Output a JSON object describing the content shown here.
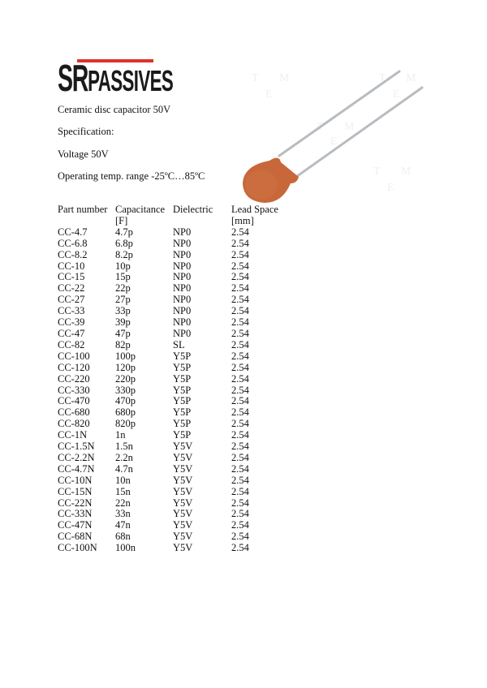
{
  "logo": {
    "text_sr": "SR",
    "text_rest": "PASSIVES",
    "accent": "#e0312c"
  },
  "title": "Ceramic disc capacitor 50V",
  "spec_label": "Specification:",
  "voltage": "Voltage 50V",
  "temp_range": "Operating temp. range -25ºC…85ºC",
  "image": {
    "description_icon": "ceramic-disc-capacitor-photo",
    "body_color": "#c8683a",
    "watermark": "TME"
  },
  "table": {
    "headers": [
      {
        "line1": "Part number",
        "line2": ""
      },
      {
        "line1": "Capacitance",
        "line2": "[F]"
      },
      {
        "line1": "Dielectric",
        "line2": ""
      },
      {
        "line1": "Lead Space",
        "line2": "[mm]"
      }
    ],
    "rows": [
      [
        "CC-4.7",
        "4.7p",
        "NP0",
        "2.54"
      ],
      [
        "CC-6.8",
        "6.8p",
        "NP0",
        "2.54"
      ],
      [
        "CC-8.2",
        "8.2p",
        "NP0",
        "2.54"
      ],
      [
        "CC-10",
        "10p",
        "NP0",
        "2.54"
      ],
      [
        "CC-15",
        "15p",
        "NP0",
        "2.54"
      ],
      [
        "CC-22",
        "22p",
        "NP0",
        "2.54"
      ],
      [
        "CC-27",
        "27p",
        "NP0",
        "2.54"
      ],
      [
        "CC-33",
        "33p",
        "NP0",
        "2.54"
      ],
      [
        "CC-39",
        "39p",
        "NP0",
        "2.54"
      ],
      [
        "CC-47",
        "47p",
        "NP0",
        "2.54"
      ],
      [
        "CC-82",
        "82p",
        "SL",
        "2.54"
      ],
      [
        "CC-100",
        "100p",
        "Y5P",
        "2.54"
      ],
      [
        "CC-120",
        "120p",
        "Y5P",
        "2.54"
      ],
      [
        "CC-220",
        "220p",
        "Y5P",
        "2.54"
      ],
      [
        "CC-330",
        "330p",
        "Y5P",
        "2.54"
      ],
      [
        "CC-470",
        "470p",
        "Y5P",
        "2.54"
      ],
      [
        "CC-680",
        "680p",
        "Y5P",
        "2.54"
      ],
      [
        "CC-820",
        "820p",
        "Y5P",
        "2.54"
      ],
      [
        "CC-1N",
        "1n",
        "Y5P",
        "2.54"
      ],
      [
        "CC-1.5N",
        "1.5n",
        "Y5V",
        "2.54"
      ],
      [
        "CC-2.2N",
        "2.2n",
        "Y5V",
        "2.54"
      ],
      [
        "CC-4.7N",
        "4.7n",
        "Y5V",
        "2.54"
      ],
      [
        "CC-10N",
        "10n",
        "Y5V",
        "2.54"
      ],
      [
        "CC-15N",
        "15n",
        "Y5V",
        "2.54"
      ],
      [
        "CC-22N",
        "22n",
        "Y5V",
        "2.54"
      ],
      [
        "CC-33N",
        "33n",
        "Y5V",
        "2.54"
      ],
      [
        "CC-47N",
        "47n",
        "Y5V",
        "2.54"
      ],
      [
        "CC-68N",
        "68n",
        "Y5V",
        "2.54"
      ],
      [
        "CC-100N",
        "100n",
        "Y5V",
        "2.54"
      ]
    ]
  }
}
